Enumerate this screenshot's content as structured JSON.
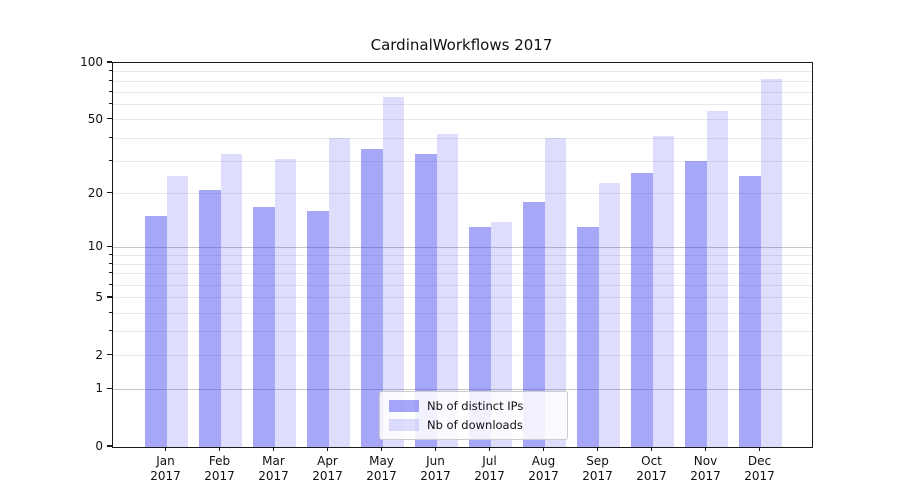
{
  "title": "CardinalWorkflows 2017",
  "chart_data": {
    "type": "bar",
    "title": "CardinalWorkflows 2017",
    "categories": [
      "Jan 2017",
      "Feb 2017",
      "Mar 2017",
      "Apr 2017",
      "May 2017",
      "Jun 2017",
      "Jul 2017",
      "Aug 2017",
      "Sep 2017",
      "Oct 2017",
      "Nov 2017",
      "Dec 2017"
    ],
    "months": [
      "Jan",
      "Feb",
      "Mar",
      "Apr",
      "May",
      "Jun",
      "Jul",
      "Aug",
      "Sep",
      "Oct",
      "Nov",
      "Dec"
    ],
    "year": "2017",
    "series": [
      {
        "name": "Nb of distinct IPs",
        "color": "rgba(60,60,240,0.45)",
        "color_hex_on_white": "#a9a9f7",
        "values": [
          15,
          21,
          17,
          16,
          35,
          33,
          13,
          18,
          13,
          26,
          30,
          25
        ]
      },
      {
        "name": "Nb of downloads",
        "color": "rgba(60,60,240,0.17)",
        "color_hex_on_white": "#dcdcfa",
        "values": [
          25,
          33,
          31,
          40,
          66,
          42,
          14,
          40,
          23,
          41,
          56,
          82
        ]
      }
    ],
    "yscale": "symlog",
    "ylim": [
      0,
      100
    ],
    "yticks": [
      0,
      1,
      2,
      5,
      10,
      20,
      50,
      100
    ],
    "yticks_minor": [
      3,
      4,
      6,
      7,
      8,
      9,
      30,
      40,
      60,
      70,
      80,
      90
    ],
    "grid": true,
    "legend_position": "lower center",
    "colors": {
      "grid_major": "#c6c6c6",
      "grid_minor": "#e9e9e9",
      "spine": "#1a1a1a",
      "background": "#ffffff"
    }
  }
}
